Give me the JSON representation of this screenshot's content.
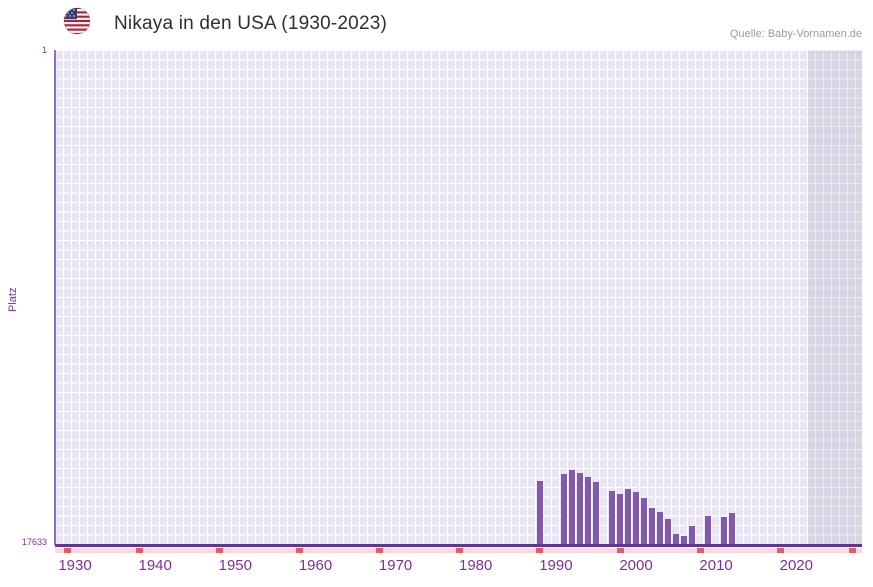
{
  "header": {
    "title": "Nikaya in den USA (1930-2023)",
    "source": "Quelle: Baby-Vornamen.de",
    "flag_icon": "us-flag-icon"
  },
  "chart_data": {
    "type": "bar",
    "title": "Nikaya in den USA (1930-2023)",
    "xlabel": "",
    "ylabel": "Platz",
    "grid": true,
    "legend": false,
    "y_axis": {
      "min": 1,
      "max": 17633,
      "inverted": true,
      "top_tick": "1",
      "bottom_tick": "17633"
    },
    "x_axis": {
      "ticks": [
        1930,
        1940,
        1950,
        1960,
        1970,
        1980,
        1990,
        2000,
        2010,
        2020
      ],
      "range": [
        1927.5,
        2028.2
      ]
    },
    "series": [
      {
        "name": "Platz",
        "points": [
          [
            1988,
            15350
          ],
          [
            1991,
            15100
          ],
          [
            1992,
            14950
          ],
          [
            1993,
            15050
          ],
          [
            1994,
            15200
          ],
          [
            1995,
            15400
          ],
          [
            1997,
            15700
          ],
          [
            1998,
            15800
          ],
          [
            1999,
            15650
          ],
          [
            2000,
            15750
          ],
          [
            2001,
            15950
          ],
          [
            2002,
            16300
          ],
          [
            2003,
            16450
          ],
          [
            2004,
            16700
          ],
          [
            2005,
            17250
          ],
          [
            2006,
            17300
          ],
          [
            2007,
            16950
          ],
          [
            2009,
            16600
          ],
          [
            2011,
            16650
          ],
          [
            2012,
            16500
          ]
        ]
      }
    ],
    "no_data_marker_years": [
      1929,
      1938,
      1948,
      1958,
      1968,
      1978,
      1988,
      1998,
      2008,
      2018,
      2027
    ],
    "recent_band_years": [
      2021.4,
      2028.2
    ],
    "colors": {
      "bar": "#8259ab",
      "plot_bg": "#e9e6f3",
      "grid_line": "#ffffff",
      "axis": "#5c3696",
      "tick_label": "#7d2f9c",
      "no_data_strip": "#f7d9e0",
      "no_data_mark": "#e05c66"
    }
  }
}
